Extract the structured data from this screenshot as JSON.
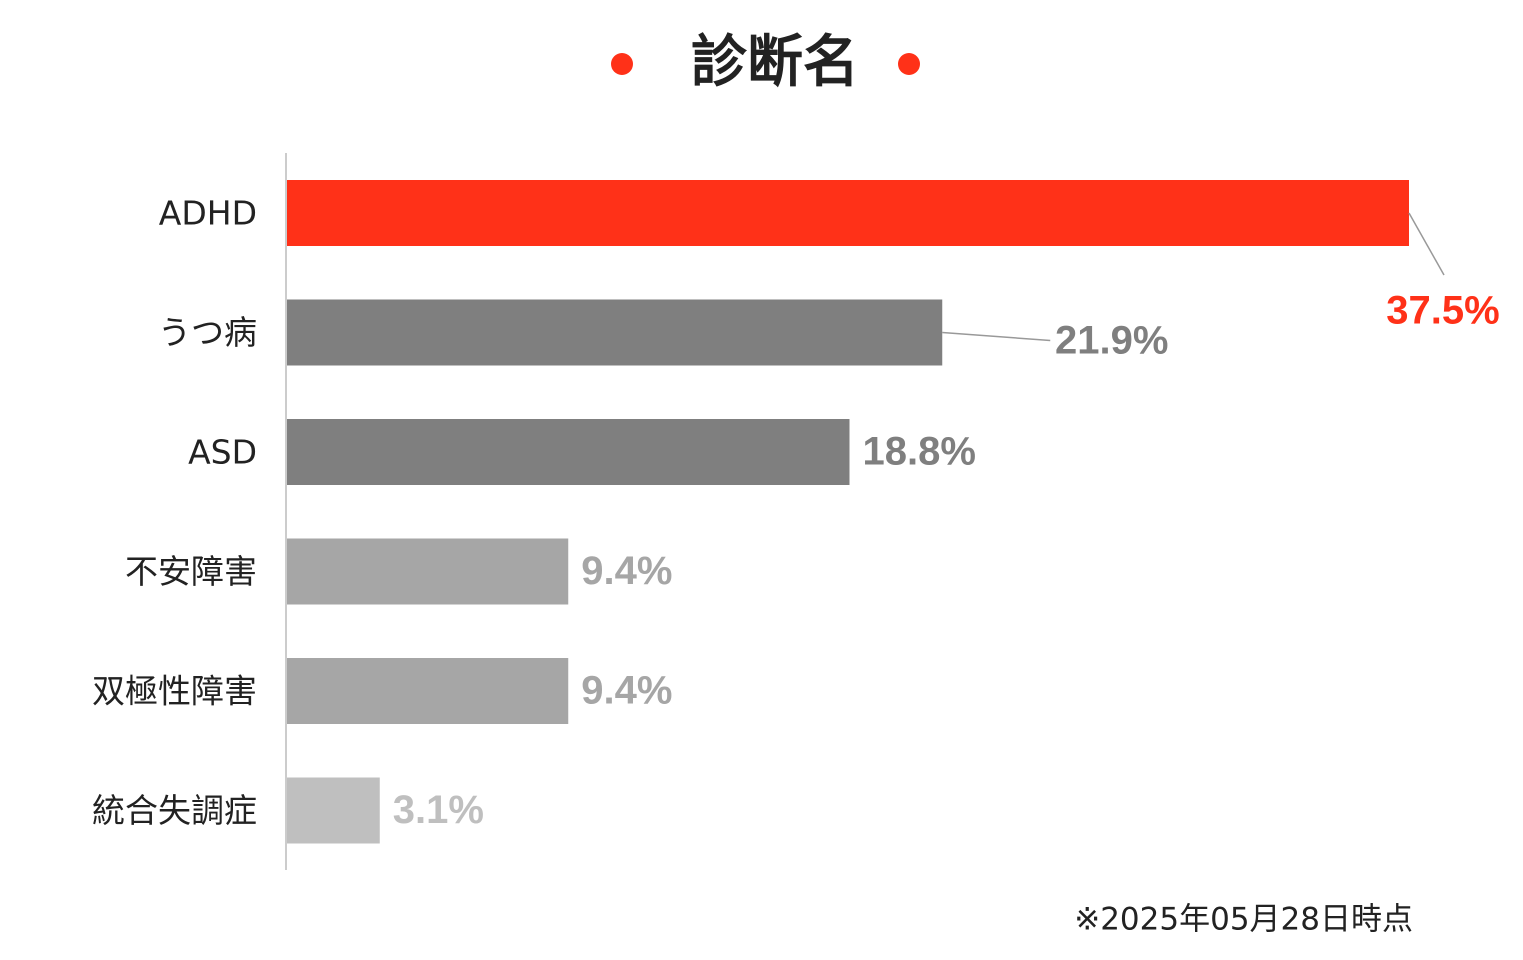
{
  "chart_data": {
    "type": "bar",
    "orientation": "horizontal",
    "title": "診断名",
    "categories": [
      "ADHD",
      "うつ病",
      "ASD",
      "不安障害",
      "双極性障害",
      "統合失調症"
    ],
    "values": [
      37.5,
      21.9,
      18.8,
      9.4,
      9.4,
      3.1
    ],
    "value_labels": [
      "37.5%",
      "21.9%",
      "18.8%",
      "9.4%",
      "9.4%",
      "3.1%"
    ],
    "colors": [
      "#ff3118",
      "#7f7f7f",
      "#7f7f7f",
      "#a6a6a6",
      "#a6a6a6",
      "#bfbfbf"
    ],
    "footnote": "※2025年05月28日時点"
  }
}
